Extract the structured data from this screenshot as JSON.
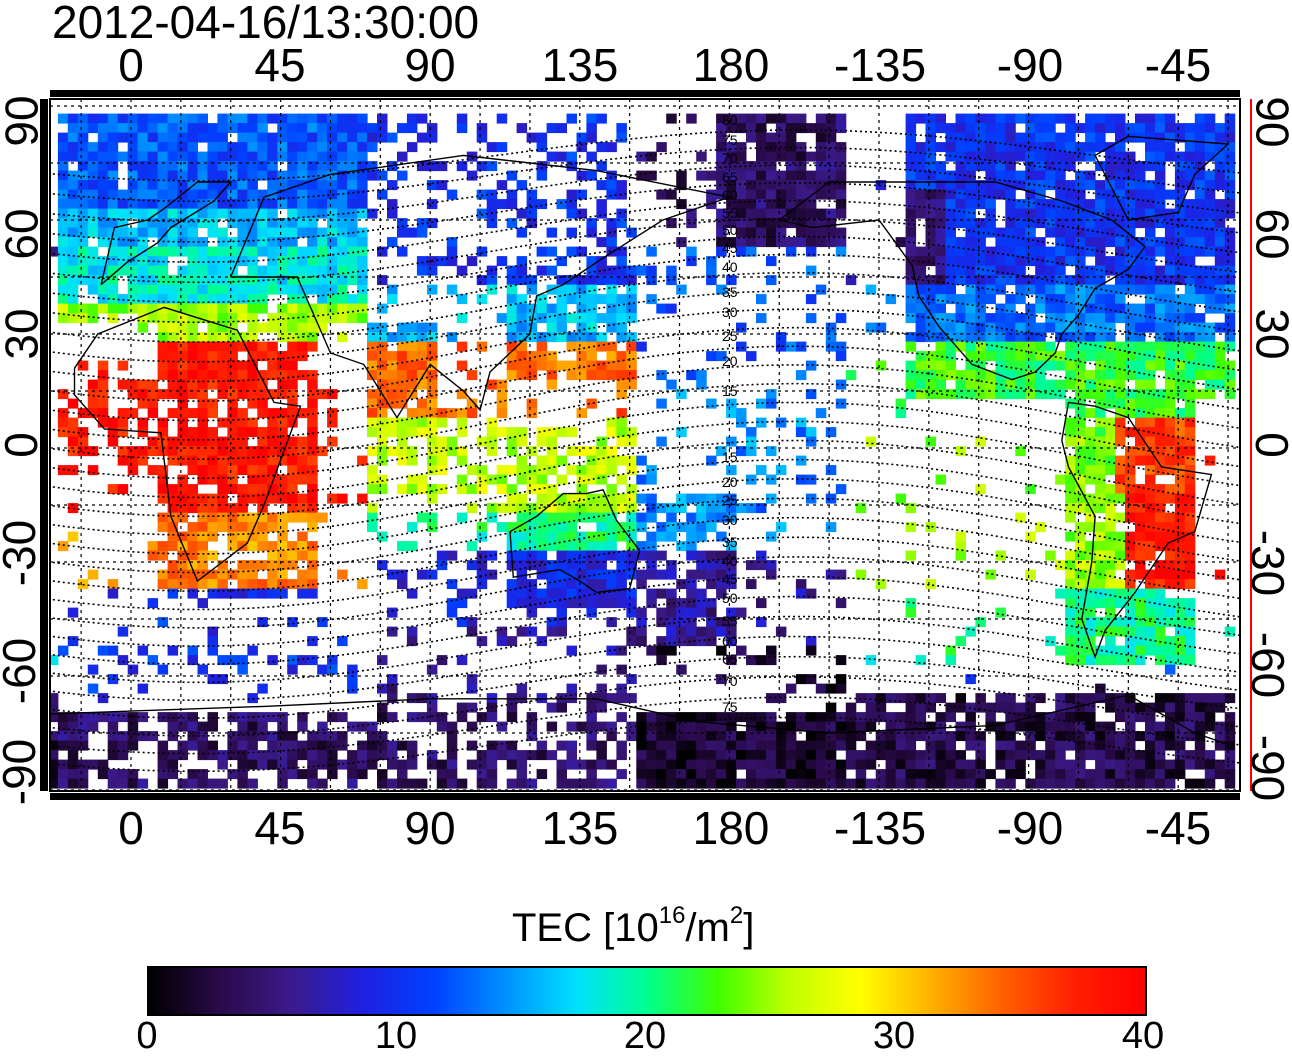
{
  "map": {
    "timestamp": "2012-04-16/13:30:00",
    "projection": "equirectangular, centered 180-ish, longitudes wrap",
    "top_lon_labels": [
      "0",
      "45",
      "90",
      "135",
      "180",
      "-135",
      "-90",
      "-45"
    ],
    "bottom_lon_labels": [
      "0",
      "45",
      "90",
      "135",
      "180",
      "-135",
      "-90",
      "-45"
    ],
    "left_lat_labels": [
      "90",
      "60",
      "30",
      "0",
      "-30",
      "-60",
      "-90"
    ],
    "right_lat_labels": [
      "90",
      "60",
      "30",
      "0",
      "-30",
      "-60",
      "-90"
    ],
    "contour_labels": [
      "80",
      "75",
      "70",
      "65",
      "60",
      "55",
      "50",
      "45",
      "40",
      "35",
      "30",
      "25",
      "20",
      "15",
      "15",
      "20",
      "25",
      "30",
      "35",
      "40",
      "45",
      "50",
      "55",
      "60",
      "65",
      "70",
      "75"
    ],
    "colorbar": {
      "title_prefix": "TEC  [10",
      "title_sup1": "16",
      "title_mid": "/m",
      "title_sup2": "2",
      "title_suffix": "]",
      "ticks": [
        "0",
        "10",
        "20",
        "30",
        "40"
      ],
      "range": [
        0,
        40
      ],
      "colors": [
        "#000000",
        "#2a0a4a",
        "#3b1a8a",
        "#2020e0",
        "#0040ff",
        "#0090ff",
        "#00e0ff",
        "#00ff90",
        "#40ff00",
        "#c0ff00",
        "#ffff00",
        "#ffb000",
        "#ff6000",
        "#ff2000",
        "#ff0000"
      ]
    },
    "accent_colors": {
      "right_axis_line": "#ff0000",
      "grid": "#000000",
      "coast": "#000000"
    }
  }
}
